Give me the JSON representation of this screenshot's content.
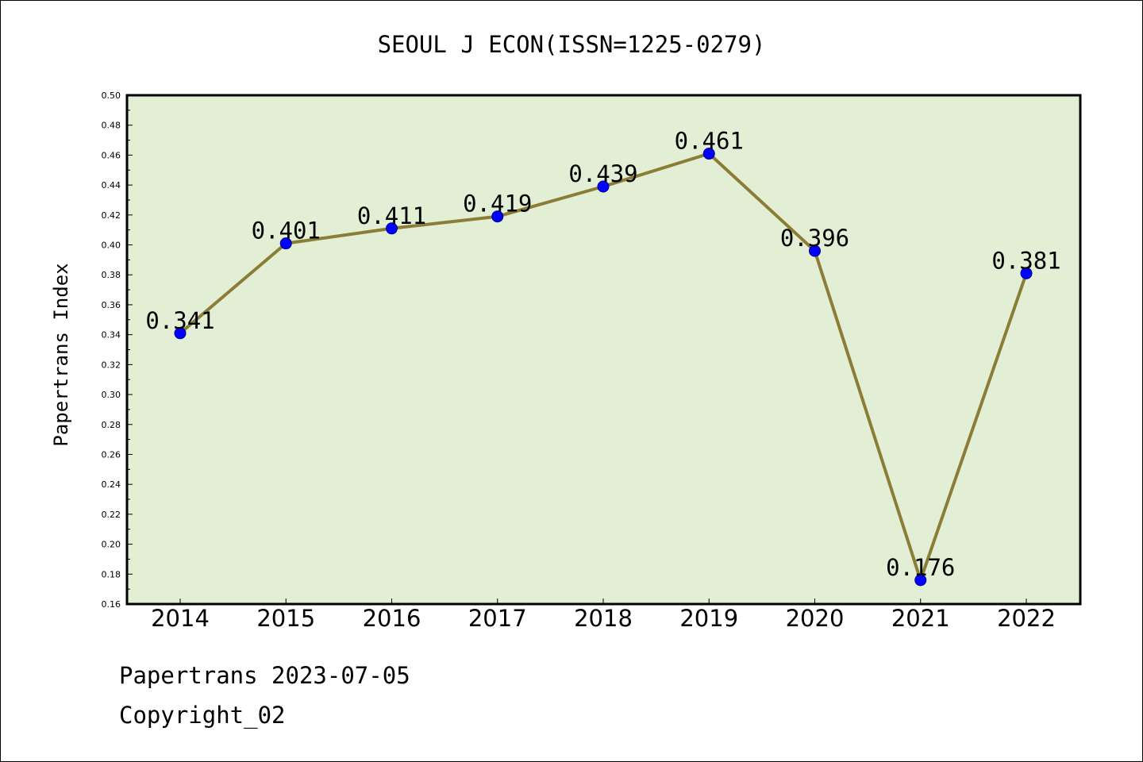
{
  "chart_data": {
    "type": "line",
    "title": "SEOUL J ECON(ISSN=1225-0279)",
    "ylabel": "Papertrans Index",
    "xlabel": "",
    "categories": [
      "2014",
      "2015",
      "2016",
      "2017",
      "2018",
      "2019",
      "2020",
      "2021",
      "2022"
    ],
    "values": [
      0.341,
      0.401,
      0.411,
      0.419,
      0.439,
      0.461,
      0.396,
      0.176,
      0.381
    ],
    "data_labels": [
      "0.341",
      "0.401",
      "0.411",
      "0.419",
      "0.439",
      "0.461",
      "0.396",
      "0.176",
      "0.381"
    ],
    "ylim": [
      0.16,
      0.5
    ],
    "yticks": [
      "0.16",
      "0.18",
      "0.20",
      "0.22",
      "0.24",
      "0.26",
      "0.28",
      "0.30",
      "0.32",
      "0.34",
      "0.36",
      "0.38",
      "0.40",
      "0.42",
      "0.44",
      "0.46",
      "0.48",
      "0.50"
    ],
    "grid": false,
    "colors": {
      "plot_background": "#e2efd5",
      "line": "#8b7d35",
      "marker": "#0000ff",
      "marker_edge": "#00008b"
    }
  },
  "footer": {
    "line1": "Papertrans 2023-07-05",
    "line2": "Copyright_02"
  }
}
